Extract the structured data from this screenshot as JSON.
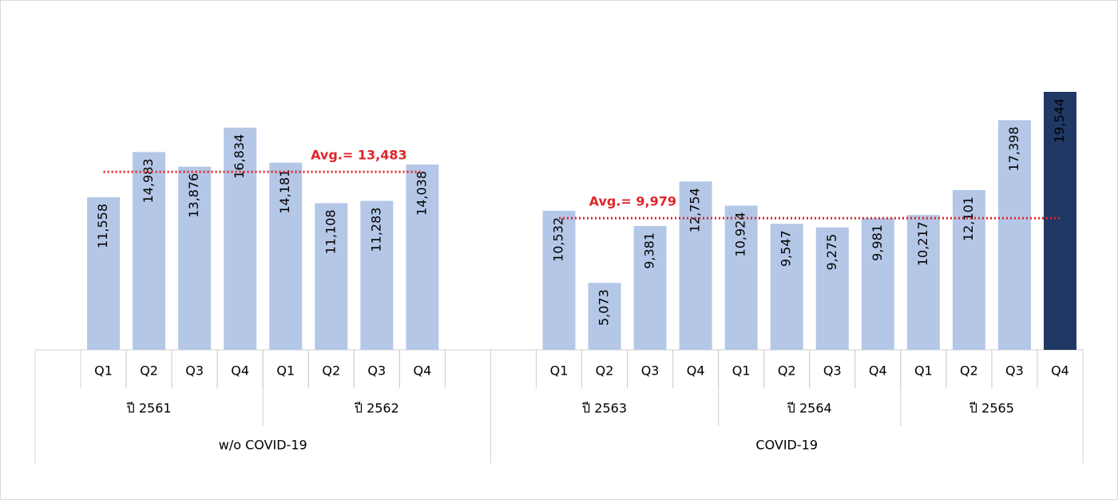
{
  "chart_data": {
    "type": "bar",
    "periods": [
      {
        "name": "w/o COVID-19",
        "average": 13483,
        "average_label": "Avg.= 13,483",
        "average_color": "#e0262b",
        "years": [
          {
            "name": "ปี 2561",
            "categories": [
              "Q1",
              "Q2",
              "Q3",
              "Q4"
            ],
            "values": [
              11558,
              14983,
              13876,
              16834
            ],
            "value_labels": [
              "11,558",
              "14,983",
              "13,876",
              "16,834"
            ],
            "colors": [
              "#b4c7e7",
              "#b4c7e7",
              "#b4c7e7",
              "#b4c7e7"
            ]
          },
          {
            "name": "ปี 2562",
            "categories": [
              "Q1",
              "Q2",
              "Q3",
              "Q4"
            ],
            "values": [
              14181,
              11108,
              11283,
              14038
            ],
            "value_labels": [
              "14,181",
              "11,108",
              "11,283",
              "14,038"
            ],
            "colors": [
              "#b4c7e7",
              "#b4c7e7",
              "#b4c7e7",
              "#b4c7e7"
            ]
          }
        ]
      },
      {
        "name": "COVID-19",
        "average": 9979,
        "average_label": "Avg.= 9,979",
        "average_color": "#e0262b",
        "years": [
          {
            "name": "ปี 2563",
            "categories": [
              "Q1",
              "Q2",
              "Q3",
              "Q4"
            ],
            "values": [
              10532,
              5073,
              9381,
              12754
            ],
            "value_labels": [
              "10,532",
              "5,073",
              "9,381",
              "12,754"
            ],
            "colors": [
              "#b4c7e7",
              "#b4c7e7",
              "#b4c7e7",
              "#b4c7e7"
            ]
          },
          {
            "name": "ปี 2564",
            "categories": [
              "Q1",
              "Q2",
              "Q3",
              "Q4"
            ],
            "values": [
              10924,
              9547,
              9275,
              9981
            ],
            "value_labels": [
              "10,924",
              "9,547",
              "9,275",
              "9,981"
            ],
            "colors": [
              "#b4c7e7",
              "#b4c7e7",
              "#b4c7e7",
              "#b4c7e7"
            ]
          },
          {
            "name": "ปี 2565",
            "categories": [
              "Q1",
              "Q2",
              "Q3",
              "Q4"
            ],
            "values": [
              10217,
              12101,
              17398,
              19544
            ],
            "value_labels": [
              "10,217",
              "12,101",
              "17,398",
              "19,544"
            ],
            "colors": [
              "#b4c7e7",
              "#b4c7e7",
              "#b4c7e7",
              "#203864"
            ]
          }
        ]
      }
    ]
  }
}
